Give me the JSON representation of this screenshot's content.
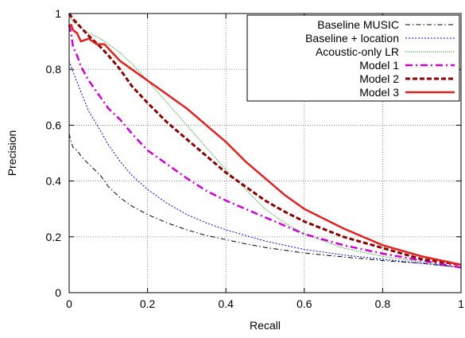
{
  "chart_data": {
    "type": "line",
    "title": "",
    "xlabel": "Recall",
    "ylabel": "Precision",
    "xlim": [
      0,
      1
    ],
    "ylim": [
      0,
      1
    ],
    "xticks": [
      0,
      0.2,
      0.4,
      0.6,
      0.8,
      1
    ],
    "yticks": [
      0,
      0.2,
      0.4,
      0.6,
      0.8,
      1
    ],
    "xtick_labels": [
      "0",
      "0.2",
      "0.4",
      "0.6",
      "0.8",
      "1"
    ],
    "ytick_labels": [
      "0",
      "0.2",
      "0.4",
      "0.6",
      "0.8",
      "1"
    ],
    "grid": true,
    "legend_position": "top-right",
    "series": [
      {
        "name": "Baseline MUSIC",
        "color": "#000000",
        "style": "dash-dot-thin",
        "points": [
          [
            0,
            0.57
          ],
          [
            0.005,
            0.54
          ],
          [
            0.01,
            0.52
          ],
          [
            0.02,
            0.51
          ],
          [
            0.03,
            0.49
          ],
          [
            0.05,
            0.46
          ],
          [
            0.08,
            0.42
          ],
          [
            0.1,
            0.38
          ],
          [
            0.13,
            0.34
          ],
          [
            0.16,
            0.31
          ],
          [
            0.2,
            0.28
          ],
          [
            0.25,
            0.25
          ],
          [
            0.3,
            0.225
          ],
          [
            0.35,
            0.205
          ],
          [
            0.4,
            0.19
          ],
          [
            0.45,
            0.175
          ],
          [
            0.5,
            0.162
          ],
          [
            0.6,
            0.142
          ],
          [
            0.7,
            0.128
          ],
          [
            0.8,
            0.115
          ],
          [
            0.9,
            0.105
          ],
          [
            1.0,
            0.09
          ]
        ]
      },
      {
        "name": "Baseline + location",
        "color": "#0000cc",
        "style": "dotted-thin",
        "points": [
          [
            0,
            0.83
          ],
          [
            0.005,
            0.81
          ],
          [
            0.01,
            0.79
          ],
          [
            0.03,
            0.72
          ],
          [
            0.05,
            0.65
          ],
          [
            0.08,
            0.58
          ],
          [
            0.1,
            0.53
          ],
          [
            0.13,
            0.47
          ],
          [
            0.16,
            0.42
          ],
          [
            0.2,
            0.37
          ],
          [
            0.25,
            0.32
          ],
          [
            0.3,
            0.28
          ],
          [
            0.35,
            0.25
          ],
          [
            0.4,
            0.225
          ],
          [
            0.45,
            0.205
          ],
          [
            0.5,
            0.185
          ],
          [
            0.6,
            0.155
          ],
          [
            0.7,
            0.135
          ],
          [
            0.8,
            0.12
          ],
          [
            0.9,
            0.105
          ],
          [
            1.0,
            0.09
          ]
        ]
      },
      {
        "name": "Acoustic-only LR",
        "color": "#008800",
        "style": "dotted-fine",
        "points": [
          [
            0,
            0.99
          ],
          [
            0.01,
            0.97
          ],
          [
            0.03,
            0.95
          ],
          [
            0.05,
            0.93
          ],
          [
            0.08,
            0.91
          ],
          [
            0.1,
            0.89
          ],
          [
            0.13,
            0.86
          ],
          [
            0.16,
            0.82
          ],
          [
            0.2,
            0.76
          ],
          [
            0.25,
            0.68
          ],
          [
            0.3,
            0.6
          ],
          [
            0.35,
            0.52
          ],
          [
            0.4,
            0.44
          ],
          [
            0.45,
            0.37
          ],
          [
            0.5,
            0.3
          ],
          [
            0.55,
            0.25
          ],
          [
            0.6,
            0.21
          ],
          [
            0.7,
            0.16
          ],
          [
            0.8,
            0.13
          ],
          [
            0.9,
            0.11
          ],
          [
            1.0,
            0.09
          ]
        ]
      },
      {
        "name": "Model 1",
        "color": "#cc00cc",
        "style": "dash-dot-thick",
        "points": [
          [
            0,
            0.96
          ],
          [
            0.005,
            0.93
          ],
          [
            0.01,
            0.88
          ],
          [
            0.02,
            0.85
          ],
          [
            0.03,
            0.81
          ],
          [
            0.05,
            0.76
          ],
          [
            0.08,
            0.7
          ],
          [
            0.1,
            0.66
          ],
          [
            0.13,
            0.62
          ],
          [
            0.16,
            0.57
          ],
          [
            0.2,
            0.51
          ],
          [
            0.25,
            0.46
          ],
          [
            0.3,
            0.41
          ],
          [
            0.35,
            0.365
          ],
          [
            0.4,
            0.33
          ],
          [
            0.45,
            0.3
          ],
          [
            0.5,
            0.27
          ],
          [
            0.55,
            0.24
          ],
          [
            0.6,
            0.21
          ],
          [
            0.7,
            0.17
          ],
          [
            0.8,
            0.14
          ],
          [
            0.9,
            0.115
          ],
          [
            1.0,
            0.09
          ]
        ]
      },
      {
        "name": "Model 2",
        "color": "#880000",
        "style": "dashed-thick",
        "points": [
          [
            0,
            1.0
          ],
          [
            0.01,
            0.98
          ],
          [
            0.03,
            0.95
          ],
          [
            0.05,
            0.92
          ],
          [
            0.08,
            0.88
          ],
          [
            0.1,
            0.85
          ],
          [
            0.13,
            0.8
          ],
          [
            0.16,
            0.74
          ],
          [
            0.2,
            0.68
          ],
          [
            0.25,
            0.61
          ],
          [
            0.3,
            0.55
          ],
          [
            0.35,
            0.49
          ],
          [
            0.4,
            0.43
          ],
          [
            0.45,
            0.38
          ],
          [
            0.5,
            0.33
          ],
          [
            0.55,
            0.29
          ],
          [
            0.6,
            0.255
          ],
          [
            0.7,
            0.2
          ],
          [
            0.8,
            0.16
          ],
          [
            0.9,
            0.12
          ],
          [
            1.0,
            0.1
          ]
        ]
      },
      {
        "name": "Model 3",
        "color": "#dd2222",
        "style": "solid-thick",
        "points": [
          [
            0,
            0.95
          ],
          [
            0.005,
            0.96
          ],
          [
            0.01,
            0.94
          ],
          [
            0.02,
            0.93
          ],
          [
            0.03,
            0.9
          ],
          [
            0.05,
            0.91
          ],
          [
            0.07,
            0.89
          ],
          [
            0.09,
            0.89
          ],
          [
            0.11,
            0.86
          ],
          [
            0.13,
            0.83
          ],
          [
            0.16,
            0.8
          ],
          [
            0.2,
            0.76
          ],
          [
            0.25,
            0.71
          ],
          [
            0.3,
            0.66
          ],
          [
            0.35,
            0.6
          ],
          [
            0.4,
            0.54
          ],
          [
            0.45,
            0.47
          ],
          [
            0.5,
            0.41
          ],
          [
            0.55,
            0.35
          ],
          [
            0.6,
            0.3
          ],
          [
            0.7,
            0.23
          ],
          [
            0.8,
            0.17
          ],
          [
            0.9,
            0.13
          ],
          [
            1.0,
            0.1
          ]
        ]
      }
    ]
  }
}
